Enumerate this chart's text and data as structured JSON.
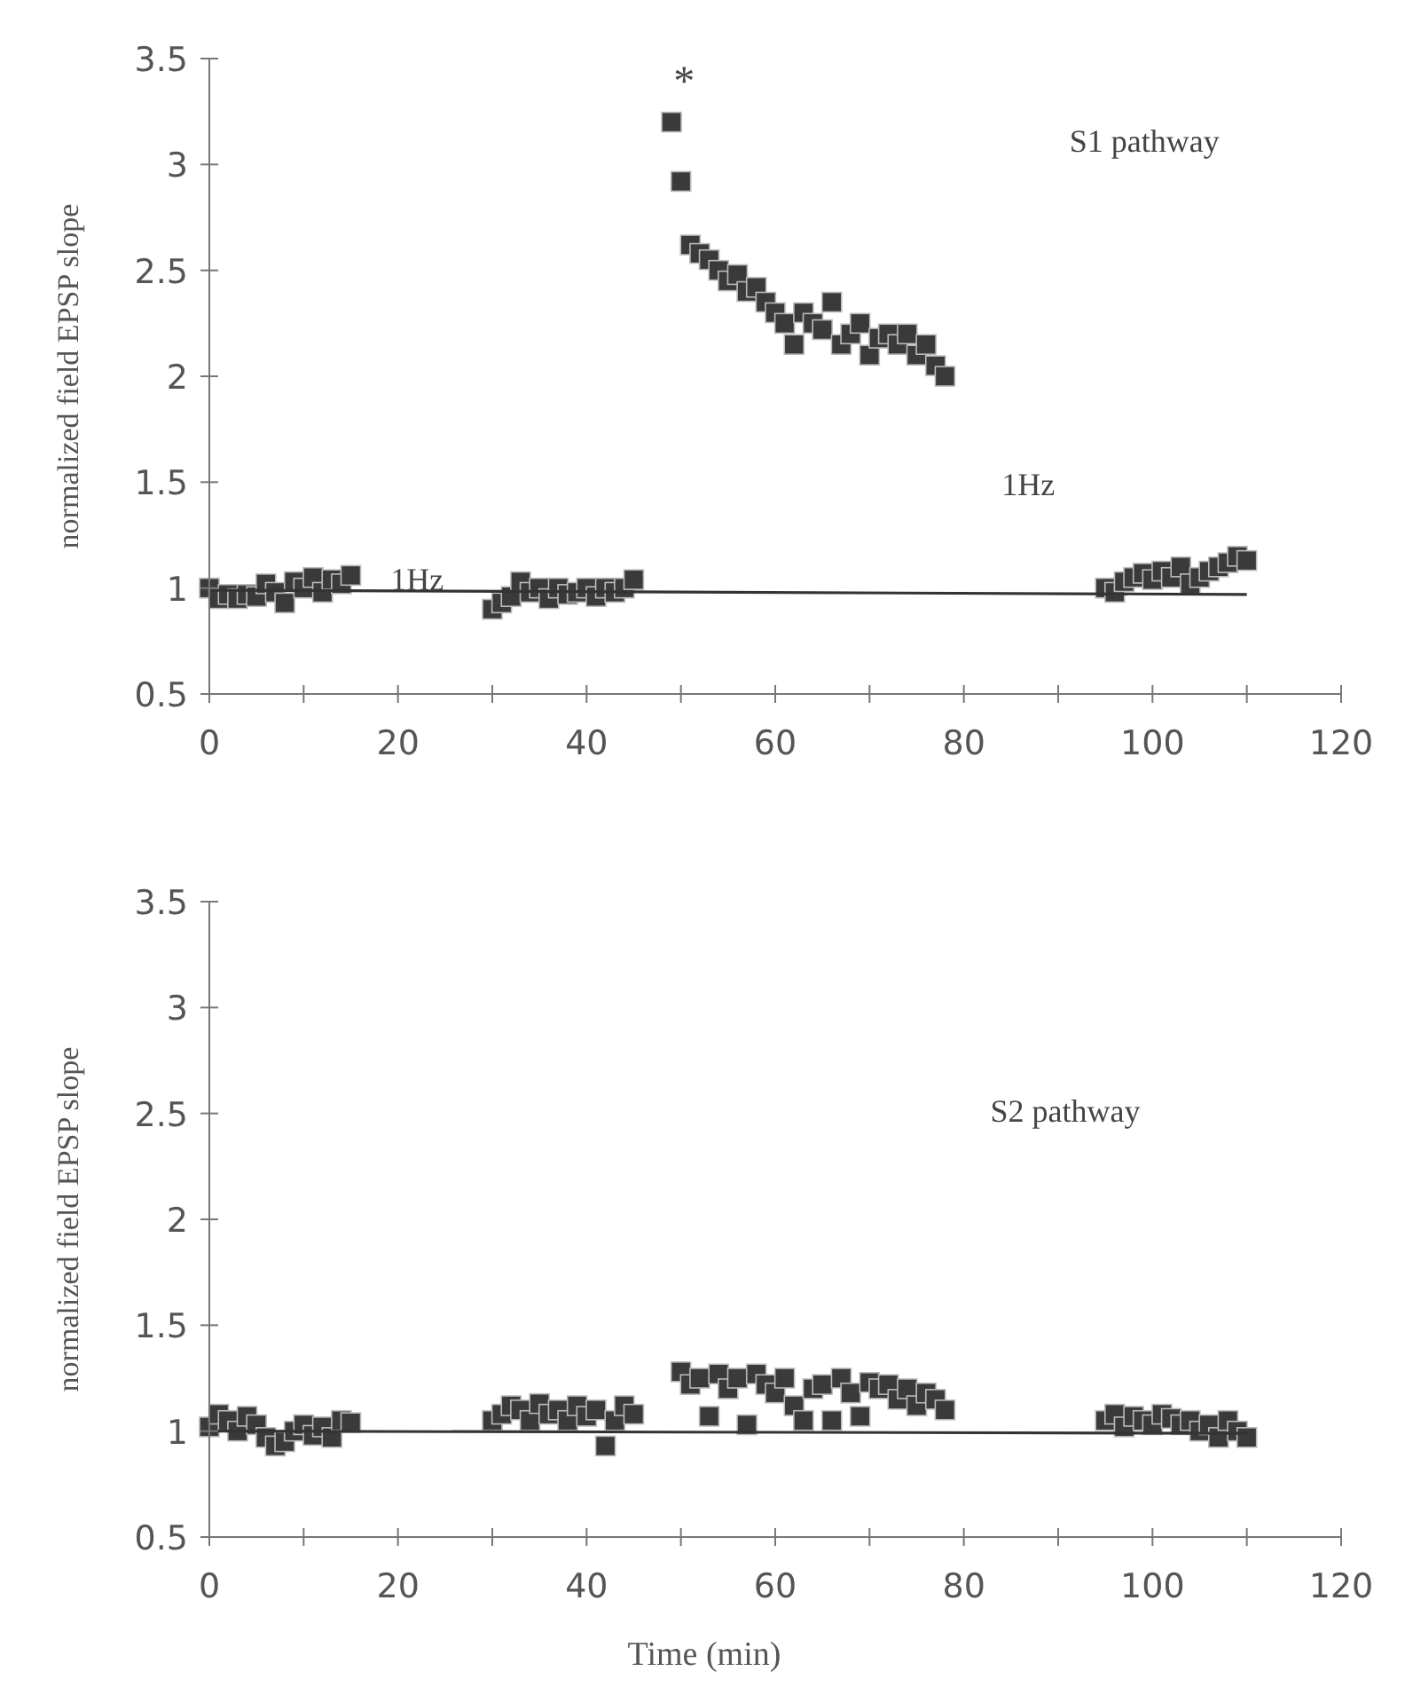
{
  "chart_data": [
    {
      "type": "scatter",
      "ylabel": "normalized field EPSP slope",
      "xlim": [
        0,
        120
      ],
      "ylim": [
        0.5,
        3.5
      ],
      "xticks": [
        0,
        {
          "value": 10,
          "label": null
        },
        20,
        {
          "value": 30,
          "label": null
        },
        40,
        {
          "value": 50,
          "label": null
        },
        60,
        {
          "value": 70,
          "label": null
        },
        80,
        {
          "value": 90,
          "label": null
        },
        100,
        {
          "value": 110,
          "label": null
        },
        120
      ],
      "yticks": [
        0.5,
        1,
        1.5,
        2,
        2.5,
        3,
        3.5
      ],
      "marker": "square",
      "annotations": [
        "S1 pathway",
        "1Hz",
        "1Hz",
        "*"
      ],
      "series": [
        {
          "type": "scatter",
          "color": "#3a3a3a",
          "x": [
            0,
            1,
            2,
            3,
            4,
            5,
            6,
            7,
            8,
            9,
            10,
            11,
            12,
            13,
            14,
            15,
            30,
            31,
            32,
            33,
            34,
            35,
            36,
            37,
            38,
            39,
            40,
            41,
            42,
            43,
            44,
            45,
            49,
            50,
            51,
            52,
            53,
            54,
            55,
            56,
            57,
            58,
            59,
            60,
            61,
            62,
            63,
            64,
            65,
            66,
            67,
            68,
            69,
            70,
            71,
            72,
            73,
            74,
            75,
            76,
            77,
            78,
            95,
            96,
            97,
            98,
            99,
            100,
            101,
            102,
            103,
            104,
            105,
            106,
            107,
            108,
            109,
            110
          ],
          "values": [
            1.0,
            0.95,
            0.97,
            0.95,
            0.97,
            0.96,
            1.02,
            0.98,
            0.93,
            1.03,
            1.0,
            1.05,
            0.98,
            1.04,
            1.02,
            1.06,
            0.9,
            0.93,
            0.96,
            1.03,
            0.98,
            1.0,
            0.95,
            1.0,
            0.97,
            0.98,
            1.0,
            0.96,
            1.0,
            0.98,
            1.0,
            1.04,
            3.2,
            2.92,
            2.62,
            2.58,
            2.55,
            2.5,
            2.45,
            2.48,
            2.4,
            2.42,
            2.35,
            2.3,
            2.25,
            2.15,
            2.3,
            2.25,
            2.22,
            2.35,
            2.15,
            2.2,
            2.25,
            2.1,
            2.18,
            2.2,
            2.15,
            2.2,
            2.1,
            2.15,
            2.05,
            2.0,
            1.0,
            0.98,
            1.03,
            1.05,
            1.07,
            1.04,
            1.08,
            1.05,
            1.1,
            1.02,
            1.05,
            1.08,
            1.1,
            1.12,
            1.15,
            1.13
          ]
        },
        {
          "type": "line",
          "color": "#333333",
          "marker": "none",
          "x": [
            0,
            110
          ],
          "values": [
            0.99,
            0.97
          ]
        }
      ]
    },
    {
      "type": "scatter",
      "ylabel": "normalized field EPSP slope",
      "xlabel": "Time (min)",
      "xlim": [
        0,
        120
      ],
      "ylim": [
        0.5,
        3.5
      ],
      "xticks": [
        0,
        {
          "value": 10,
          "label": null
        },
        20,
        {
          "value": 30,
          "label": null
        },
        40,
        {
          "value": 50,
          "label": null
        },
        60,
        {
          "value": 70,
          "label": null
        },
        80,
        {
          "value": 90,
          "label": null
        },
        100,
        {
          "value": 110,
          "label": null
        },
        120
      ],
      "yticks": [
        0.5,
        1,
        1.5,
        2,
        2.5,
        3,
        3.5
      ],
      "marker": "square",
      "annotations": [
        "S2 pathway"
      ],
      "series": [
        {
          "type": "scatter",
          "color": "#3a3a3a",
          "x": [
            0,
            1,
            2,
            3,
            4,
            5,
            6,
            7,
            8,
            9,
            10,
            11,
            12,
            13,
            14,
            15,
            30,
            31,
            32,
            33,
            34,
            35,
            36,
            37,
            38,
            39,
            40,
            41,
            42,
            43,
            44,
            45,
            50,
            51,
            52,
            53,
            54,
            55,
            56,
            57,
            58,
            59,
            60,
            61,
            62,
            63,
            64,
            65,
            66,
            67,
            68,
            69,
            70,
            71,
            72,
            73,
            74,
            75,
            76,
            77,
            78,
            95,
            96,
            97,
            98,
            99,
            100,
            101,
            102,
            103,
            104,
            105,
            106,
            107,
            108,
            109,
            110
          ],
          "values": [
            1.02,
            1.08,
            1.05,
            1.0,
            1.07,
            1.03,
            0.97,
            0.93,
            0.95,
            1.0,
            1.03,
            0.98,
            1.02,
            0.97,
            1.05,
            1.04,
            1.05,
            1.08,
            1.12,
            1.1,
            1.05,
            1.13,
            1.08,
            1.1,
            1.05,
            1.12,
            1.07,
            1.1,
            0.93,
            1.05,
            1.12,
            1.08,
            1.28,
            1.22,
            1.25,
            1.07,
            1.27,
            1.2,
            1.25,
            1.03,
            1.27,
            1.22,
            1.18,
            1.25,
            1.12,
            1.05,
            1.2,
            1.22,
            1.05,
            1.25,
            1.18,
            1.07,
            1.23,
            1.2,
            1.22,
            1.15,
            1.2,
            1.12,
            1.18,
            1.15,
            1.1,
            1.05,
            1.08,
            1.02,
            1.07,
            1.05,
            1.03,
            1.08,
            1.06,
            1.03,
            1.05,
            1.0,
            1.03,
            0.97,
            1.05,
            1.0,
            0.97
          ]
        },
        {
          "type": "line",
          "color": "#333333",
          "marker": "none",
          "x": [
            0,
            110
          ],
          "values": [
            1.0,
            0.99
          ]
        }
      ]
    }
  ]
}
